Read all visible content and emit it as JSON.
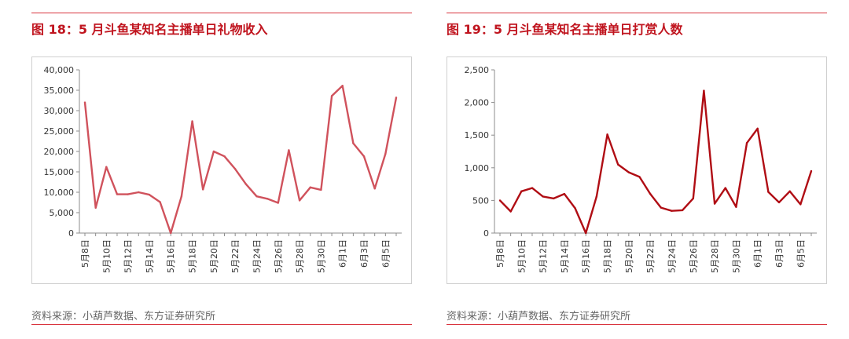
{
  "figures": [
    {
      "title": "图 18：5 月斗鱼某知名主播单日礼物收入",
      "source": "资料来源：小葫芦数据、东方证券研究所"
    },
    {
      "title": "图 19：5 月斗鱼某知名主播单日打赏人数",
      "source": "资料来源：小葫芦数据、东方证券研究所"
    }
  ],
  "chart_data": [
    {
      "type": "line",
      "title": "",
      "xlabel": "",
      "ylabel": "",
      "categories": [
        "5月8日",
        "5月9日",
        "5月10日",
        "5月11日",
        "5月12日",
        "5月13日",
        "5月14日",
        "5月15日",
        "5月16日",
        "5月17日",
        "5月18日",
        "5月19日",
        "5月20日",
        "5月21日",
        "5月22日",
        "5月23日",
        "5月24日",
        "5月25日",
        "5月26日",
        "5月27日",
        "5月28日",
        "5月29日",
        "5月30日",
        "5月31日",
        "6月1日",
        "6月2日",
        "6月3日",
        "6月4日",
        "6月5日",
        "6月6日"
      ],
      "tick_labels": [
        "5月8日",
        "5月10日",
        "5月12日",
        "5月14日",
        "5月16日",
        "5月18日",
        "5月20日",
        "5月22日",
        "5月24日",
        "5月26日",
        "5月28日",
        "5月30日",
        "6月1日",
        "6月3日",
        "6月5日"
      ],
      "y_ticks": [
        "0",
        "5,000",
        "10,000",
        "15,000",
        "20,000",
        "25,000",
        "30,000",
        "35,000",
        "40,000"
      ],
      "values": [
        32000,
        6200,
        16200,
        9500,
        9500,
        10000,
        9400,
        7600,
        0,
        9000,
        27400,
        10700,
        20000,
        18800,
        15700,
        12000,
        9000,
        8400,
        7400,
        20300,
        8000,
        11200,
        10600,
        33600,
        36100,
        22000,
        18800,
        10900,
        19400,
        33200
      ],
      "ylim": [
        0,
        40000
      ],
      "color": "#d0525c",
      "grid": false
    },
    {
      "type": "line",
      "title": "",
      "xlabel": "",
      "ylabel": "",
      "categories": [
        "5月8日",
        "5月9日",
        "5月10日",
        "5月11日",
        "5月12日",
        "5月13日",
        "5月14日",
        "5月15日",
        "5月16日",
        "5月17日",
        "5月18日",
        "5月19日",
        "5月20日",
        "5月21日",
        "5月22日",
        "5月23日",
        "5月24日",
        "5月25日",
        "5月26日",
        "5月27日",
        "5月28日",
        "5月29日",
        "5月30日",
        "5月31日",
        "6月1日",
        "6月2日",
        "6月3日",
        "6月4日",
        "6月5日",
        "6月6日"
      ],
      "tick_labels": [
        "5月8日",
        "5月10日",
        "5月12日",
        "5月14日",
        "5月16日",
        "5月18日",
        "5月20日",
        "5月22日",
        "5月24日",
        "5月26日",
        "5月28日",
        "5月30日",
        "6月1日",
        "6月3日",
        "6月5日"
      ],
      "y_ticks": [
        "0",
        "500",
        "1,000",
        "1,500",
        "2,000",
        "2,500"
      ],
      "values": [
        500,
        330,
        640,
        690,
        560,
        530,
        600,
        380,
        0,
        560,
        1510,
        1050,
        930,
        860,
        600,
        390,
        340,
        350,
        530,
        2180,
        450,
        690,
        400,
        1380,
        1600,
        630,
        470,
        640,
        440,
        950
      ],
      "ylim": [
        0,
        2500
      ],
      "color": "#b00d14",
      "grid": false
    }
  ]
}
